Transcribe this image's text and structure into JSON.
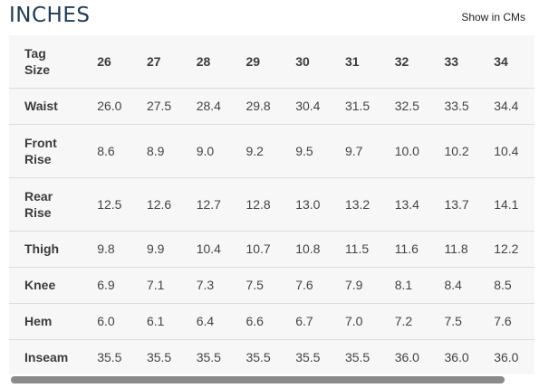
{
  "title": "INCHES",
  "unit_toggle": "Show in CMs",
  "table": {
    "header": {
      "label": "Tag Size",
      "label_lines": [
        "Tag",
        "Size"
      ],
      "sizes": [
        "26",
        "27",
        "28",
        "29",
        "30",
        "31",
        "32",
        "33",
        "34"
      ]
    },
    "rows": [
      {
        "label": "Waist",
        "label_lines": [
          "Waist"
        ],
        "values": [
          "26.0",
          "27.5",
          "28.4",
          "29.8",
          "30.4",
          "31.5",
          "32.5",
          "33.5",
          "34.4"
        ]
      },
      {
        "label": "Front Rise",
        "label_lines": [
          "Front",
          "Rise"
        ],
        "values": [
          "8.6",
          "8.9",
          "9.0",
          "9.2",
          "9.5",
          "9.7",
          "10.0",
          "10.2",
          "10.4"
        ]
      },
      {
        "label": "Rear Rise",
        "label_lines": [
          "Rear",
          "Rise"
        ],
        "values": [
          "12.5",
          "12.6",
          "12.7",
          "12.8",
          "13.0",
          "13.2",
          "13.4",
          "13.7",
          "14.1"
        ]
      },
      {
        "label": "Thigh",
        "label_lines": [
          "Thigh"
        ],
        "values": [
          "9.8",
          "9.9",
          "10.4",
          "10.7",
          "10.8",
          "11.5",
          "11.6",
          "11.8",
          "12.2"
        ]
      },
      {
        "label": "Knee",
        "label_lines": [
          "Knee"
        ],
        "values": [
          "6.9",
          "7.1",
          "7.3",
          "7.5",
          "7.6",
          "7.9",
          "8.1",
          "8.4",
          "8.5"
        ]
      },
      {
        "label": "Hem",
        "label_lines": [
          "Hem"
        ],
        "values": [
          "6.0",
          "6.1",
          "6.4",
          "6.6",
          "6.7",
          "7.0",
          "7.2",
          "7.5",
          "7.6"
        ]
      },
      {
        "label": "Inseam",
        "label_lines": [
          "Inseam"
        ],
        "values": [
          "35.5",
          "35.5",
          "35.5",
          "35.5",
          "35.5",
          "35.5",
          "36.0",
          "36.0",
          "36.0"
        ]
      }
    ]
  },
  "colors": {
    "title": "#1f3b57",
    "table_bg": "#f7f7f7",
    "row_divider": "#dcdcdc",
    "scrollbar": "#8a8a8a"
  }
}
